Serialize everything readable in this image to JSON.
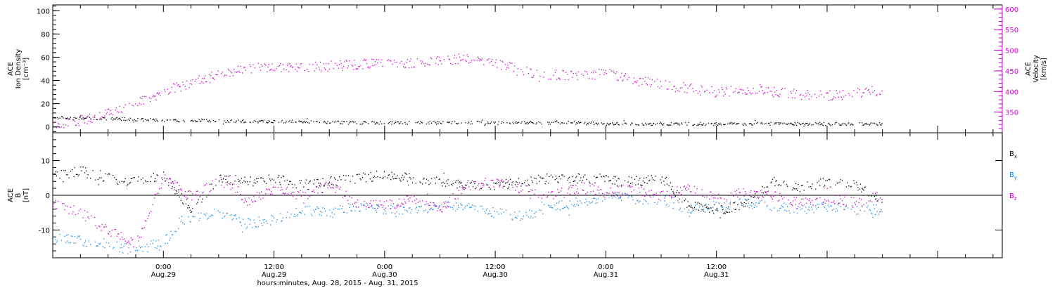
{
  "chart_data": [
    {
      "type": "scatter",
      "panel": "top",
      "ylabel": [
        "ACE",
        "Ion Density",
        "[cm⁻³]"
      ],
      "ylim": [
        -5,
        105
      ],
      "yticks": [
        0,
        20,
        40,
        60,
        80,
        100
      ],
      "y2label": [
        "ACE",
        "Velocity",
        "[km/s]"
      ],
      "y2lim": [
        300,
        610
      ],
      "y2ticks": [
        350,
        400,
        450,
        500,
        550,
        600
      ],
      "x_hours": [
        0,
        4,
        8,
        12,
        16,
        20,
        24,
        28,
        32,
        36,
        40,
        44,
        48,
        52,
        56,
        60,
        64,
        68,
        72,
        76,
        80,
        84,
        90
      ],
      "series": [
        {
          "name": "Ion Density",
          "axis": "left",
          "color": "#000000",
          "values": [
            8,
            8,
            7,
            6,
            6,
            5,
            5,
            5,
            4,
            4,
            4,
            4,
            4,
            4,
            4,
            3,
            3,
            3,
            3,
            3,
            3,
            3,
            3
          ]
        },
        {
          "name": "Velocity",
          "axis": "right",
          "color": "#cc00cc",
          "values": [
            320,
            335,
            365,
            400,
            430,
            455,
            460,
            460,
            465,
            470,
            470,
            480,
            470,
            445,
            440,
            445,
            425,
            410,
            400,
            405,
            395,
            390,
            405
          ]
        }
      ]
    },
    {
      "type": "scatter",
      "panel": "bottom",
      "ylabel": [
        "ACE",
        "B",
        "[nT]"
      ],
      "ylim": [
        -18,
        18
      ],
      "yticks": [
        -10,
        0,
        10
      ],
      "x_hours": [
        0,
        3,
        6,
        9,
        12,
        15,
        18,
        21,
        24,
        27,
        30,
        33,
        36,
        39,
        42,
        45,
        48,
        51,
        54,
        57,
        60,
        63,
        66,
        69,
        72,
        75,
        78,
        81,
        84,
        87,
        90
      ],
      "series": [
        {
          "name": "Bx",
          "color": "#000000",
          "values": [
            6,
            7,
            5,
            4,
            6,
            -4,
            5,
            4,
            5,
            3,
            4,
            5,
            6,
            5,
            4,
            3,
            3,
            4,
            5,
            5,
            5,
            4,
            5,
            -3,
            -4,
            -3,
            4,
            2,
            4,
            3,
            -2
          ]
        },
        {
          "name": "By",
          "color": "#1e88e5",
          "values": [
            -12,
            -13,
            -14,
            -16,
            -13,
            -6,
            -5,
            -8,
            -7,
            -4,
            -5,
            -3,
            -4,
            -4,
            -3,
            -3,
            -5,
            -6,
            -3,
            -2,
            0,
            -1,
            -1,
            -4,
            -3,
            -2,
            -3,
            -4,
            -3,
            -4,
            -4
          ]
        },
        {
          "name": "Bz",
          "color": "#cc00cc",
          "values": [
            -2,
            -5,
            -10,
            -14,
            5,
            0,
            5,
            -2,
            2,
            0,
            3,
            -2,
            -3,
            -1,
            -4,
            3,
            4,
            2,
            0,
            2,
            1,
            2,
            0,
            2,
            -1,
            1,
            0,
            -2,
            -1,
            -2,
            0
          ]
        }
      ],
      "legend": {
        "position": "right",
        "items": [
          "B",
          "B",
          "B"
        ],
        "subscripts": [
          "x",
          "y",
          "z"
        ]
      }
    }
  ],
  "xaxis": {
    "range_hours": [
      0,
      103
    ],
    "major_every": 12,
    "major_ticks": [
      {
        "hour": 12,
        "time": "0:00",
        "date": "Aug.29"
      },
      {
        "hour": 24,
        "time": "12:00",
        "date": "Aug.29"
      },
      {
        "hour": 36,
        "time": "0:00",
        "date": "Aug.30"
      },
      {
        "hour": 48,
        "time": "12:00",
        "date": "Aug.30"
      },
      {
        "hour": 60,
        "time": "0:00",
        "date": "Aug.31"
      },
      {
        "hour": 72,
        "time": "12:00",
        "date": "Aug.31"
      }
    ],
    "label": "hours:minutes, Aug. 28, 2015 - Aug. 31, 2015"
  }
}
